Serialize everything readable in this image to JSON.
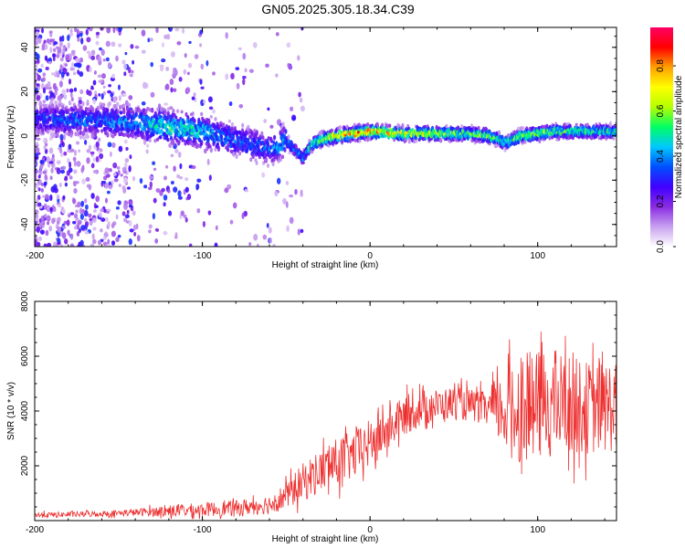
{
  "title": "GN05.2025.305.18.34.C39",
  "chart_data": [
    {
      "type": "heatmap",
      "title": "GN05.2025.305.18.34.C39",
      "xlabel": "Height of straight line (km)",
      "ylabel": "Frequency (Hz)",
      "xlim": [
        -200,
        147
      ],
      "ylim": [
        -50,
        49
      ],
      "xticks": [
        -200,
        -100,
        0,
        100
      ],
      "yticks": [
        -40,
        -20,
        0,
        20,
        40
      ],
      "colorbar": {
        "label": "Normalized spectral amplitude",
        "range": [
          0,
          0.97
        ],
        "ticks": [
          0.0,
          0.2,
          0.4,
          0.6,
          0.8
        ],
        "tick_labels": [
          "0.0",
          "0.2",
          "0.4",
          "0.6",
          "0.8"
        ],
        "colormap": [
          "#ffffff",
          "#c8a0f0",
          "#8a2be2",
          "#4000ff",
          "#0050ff",
          "#00c8ff",
          "#00ff64",
          "#b4ff00",
          "#ffff00",
          "#ffa000",
          "#ff0000",
          "#ff0064"
        ]
      },
      "ridge": {
        "x": [
          -200,
          -180,
          -160,
          -150,
          -140,
          -130,
          -120,
          -110,
          -100,
          -90,
          -80,
          -70,
          -60,
          -55,
          -50,
          -45,
          -40,
          -35,
          -30,
          -20,
          -10,
          0,
          20,
          40,
          60,
          70,
          75,
          80,
          85,
          90,
          100,
          110,
          120,
          130,
          147
        ],
        "freq": [
          8,
          7,
          7,
          6,
          6,
          5,
          4,
          3,
          2,
          0,
          -2,
          -4,
          -6,
          -5,
          -2,
          -6,
          -10,
          -4,
          -2,
          0,
          1,
          2,
          1,
          1,
          1,
          0,
          -1,
          -3,
          -2,
          0,
          1,
          2,
          2,
          2,
          2
        ],
        "amplitude": [
          0.3,
          0.35,
          0.35,
          0.4,
          0.4,
          0.45,
          0.5,
          0.5,
          0.45,
          0.4,
          0.35,
          0.35,
          0.35,
          0.4,
          0.4,
          0.35,
          0.4,
          0.5,
          0.6,
          0.7,
          0.8,
          0.75,
          0.7,
          0.6,
          0.55,
          0.6,
          0.55,
          0.5,
          0.55,
          0.6,
          0.6,
          0.55,
          0.55,
          0.5,
          0.5
        ]
      },
      "noise_extent_km": [
        -200,
        -50
      ]
    },
    {
      "type": "line",
      "xlabel": "Height of straight line (km)",
      "ylabel": "SNR (10 * v/v)",
      "xlim": [
        -200,
        147
      ],
      "ylim": [
        0,
        8000
      ],
      "xticks": [
        -200,
        -100,
        0,
        100
      ],
      "yticks": [
        2000,
        4000,
        6000,
        8000
      ],
      "series": [
        {
          "name": "SNR",
          "color": "#ee3030",
          "envelope_x": [
            -200,
            -180,
            -160,
            -140,
            -120,
            -100,
            -80,
            -60,
            -50,
            -40,
            -30,
            -20,
            -10,
            0,
            10,
            20,
            30,
            40,
            50,
            60,
            70,
            80,
            85,
            90,
            100,
            110,
            120,
            130,
            147
          ],
          "mean": [
            200,
            220,
            250,
            300,
            350,
            400,
            450,
            600,
            900,
            1400,
            1800,
            2100,
            2400,
            2800,
            3300,
            3800,
            4100,
            4200,
            4300,
            4200,
            4100,
            4000,
            4000,
            4100,
            4200,
            4300,
            4200,
            4100,
            4200
          ],
          "spread": [
            100,
            100,
            110,
            130,
            220,
            250,
            280,
            350,
            500,
            700,
            800,
            900,
            900,
            900,
            800,
            700,
            700,
            600,
            600,
            600,
            600,
            1500,
            1800,
            2000,
            2000,
            2000,
            1800,
            1700,
            1700
          ]
        }
      ]
    }
  ]
}
